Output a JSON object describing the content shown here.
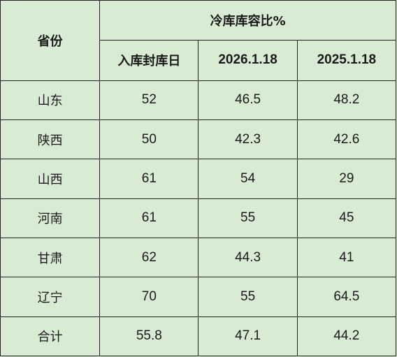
{
  "table": {
    "header_province": "省份",
    "header_group": "冷库库容比%",
    "sub_headers": [
      "入库封库日",
      "2026.1.18",
      "2025.1.18"
    ],
    "rows": [
      {
        "province": "山东",
        "seal_day": "52",
        "v2026": "46.5",
        "v2025": "48.2"
      },
      {
        "province": "陕西",
        "seal_day": "50",
        "v2026": "42.3",
        "v2025": "42.6"
      },
      {
        "province": "山西",
        "seal_day": "61",
        "v2026": "54",
        "v2025": "29"
      },
      {
        "province": "河南",
        "seal_day": "61",
        "v2026": "55",
        "v2025": "45"
      },
      {
        "province": "甘肃",
        "seal_day": "62",
        "v2026": "44.3",
        "v2025": "41"
      },
      {
        "province": "辽宁",
        "seal_day": "70",
        "v2026": "55",
        "v2025": "64.5"
      },
      {
        "province": "合计",
        "seal_day": "55.8",
        "v2026": "47.1",
        "v2025": "44.2"
      }
    ]
  }
}
